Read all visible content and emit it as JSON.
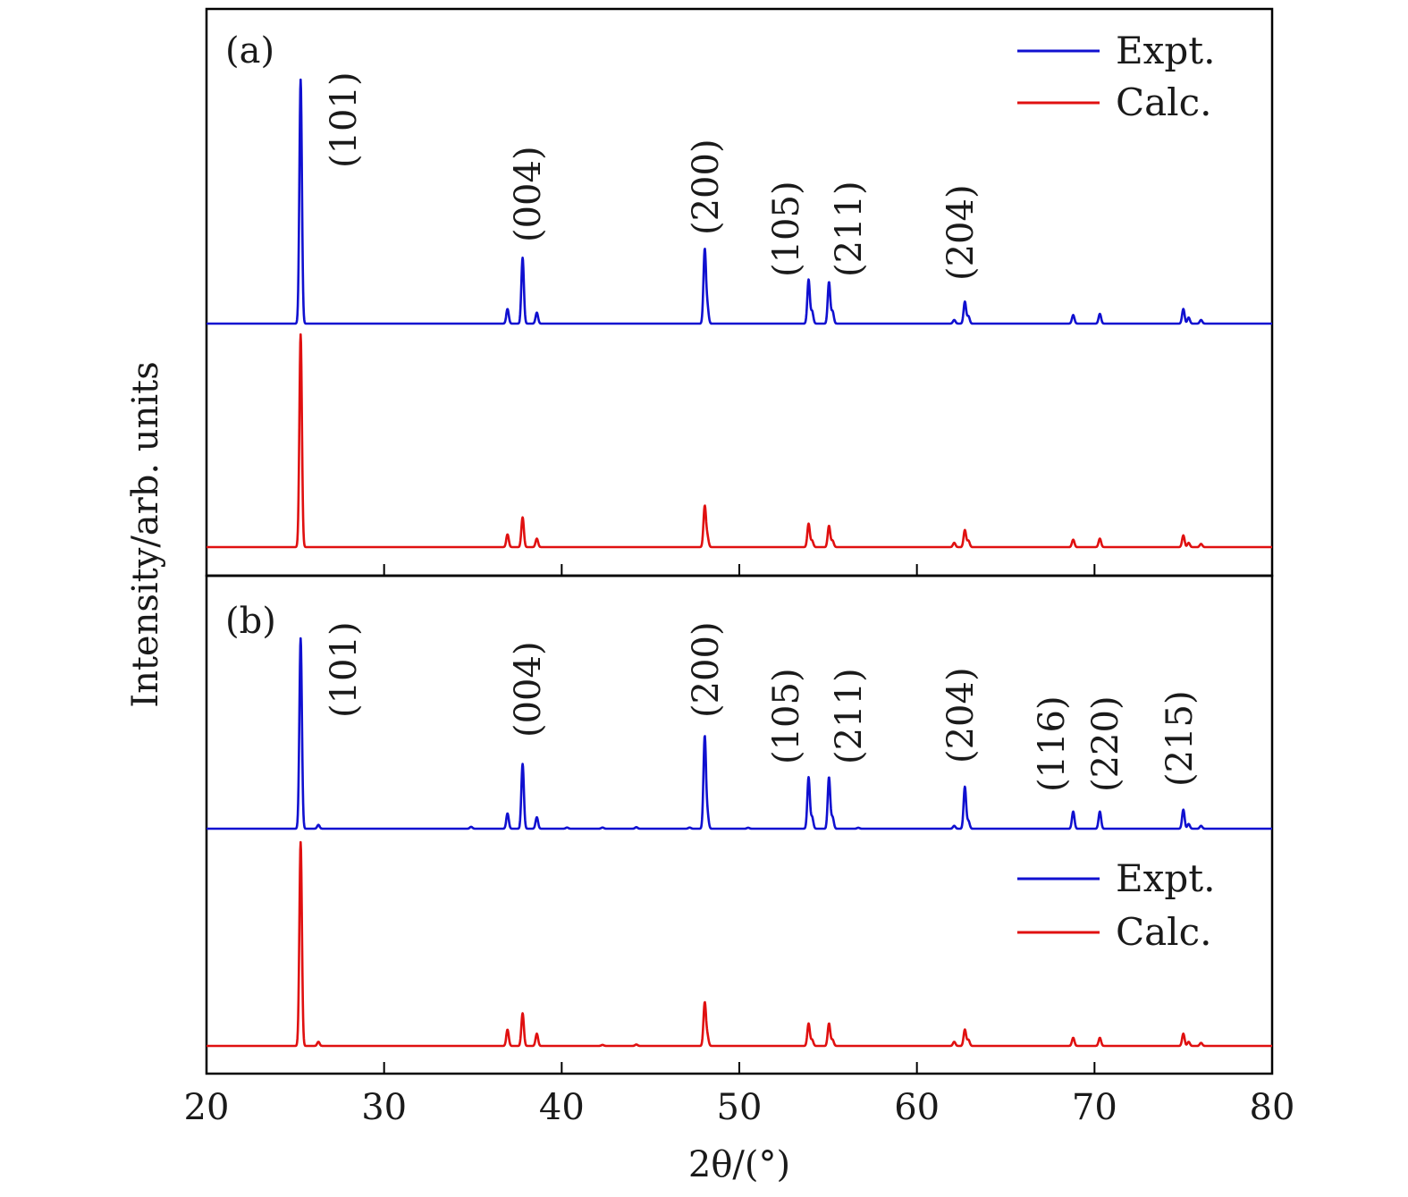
{
  "chart_data": {
    "type": "line",
    "xlabel": "2θ/(°)",
    "ylabel": "Intensity/arb. units",
    "xlim": [
      20,
      80
    ],
    "xticks": [
      20,
      30,
      40,
      50,
      60,
      70,
      80
    ],
    "xtick_labels": [
      "20",
      "30",
      "40",
      "50",
      "60",
      "70",
      "80"
    ],
    "colors": {
      "expt": "#1010d0",
      "calc": "#e01010"
    },
    "panels": [
      {
        "label": "(a)",
        "legend": {
          "placement": "top-right",
          "entries": [
            "Expt.",
            "Calc."
          ]
        },
        "series": [
          {
            "name": "Expt.",
            "peaks": [
              [
                25.3,
                100
              ],
              [
                36.95,
                6
              ],
              [
                37.8,
                27
              ],
              [
                38.6,
                4.5
              ],
              [
                48.05,
                30
              ],
              [
                48.2,
                7
              ],
              [
                53.9,
                18
              ],
              [
                54.1,
                5
              ],
              [
                55.05,
                17
              ],
              [
                55.25,
                5
              ],
              [
                62.1,
                1.5
              ],
              [
                62.7,
                9
              ],
              [
                62.9,
                3
              ],
              [
                68.8,
                3.5
              ],
              [
                70.3,
                4
              ],
              [
                75.0,
                6
              ],
              [
                75.3,
                2.5
              ],
              [
                76.0,
                1.5
              ]
            ]
          },
          {
            "name": "Calc.",
            "peaks": [
              [
                25.3,
                100
              ],
              [
                36.95,
                6
              ],
              [
                37.8,
                14
              ],
              [
                38.6,
                4
              ],
              [
                48.05,
                19
              ],
              [
                48.2,
                5
              ],
              [
                53.9,
                11
              ],
              [
                54.1,
                3
              ],
              [
                55.05,
                10
              ],
              [
                55.25,
                3
              ],
              [
                62.1,
                2
              ],
              [
                62.7,
                8
              ],
              [
                62.9,
                3
              ],
              [
                68.8,
                3.5
              ],
              [
                70.3,
                4
              ],
              [
                75.0,
                5.5
              ],
              [
                75.3,
                2
              ],
              [
                76.0,
                1.5
              ]
            ]
          }
        ],
        "annotations": [
          "(101)",
          "(004)",
          "(200)",
          "(105)",
          "(211)",
          "(204)"
        ]
      },
      {
        "label": "(b)",
        "legend": {
          "placement": "bottom-right",
          "entries": [
            "Expt.",
            "Calc."
          ]
        },
        "series": [
          {
            "name": "Expt.",
            "peaks": [
              [
                25.3,
                100
              ],
              [
                26.3,
                2
              ],
              [
                34.9,
                1
              ],
              [
                36.95,
                8
              ],
              [
                37.8,
                34
              ],
              [
                38.6,
                6
              ],
              [
                40.3,
                0.6
              ],
              [
                42.3,
                0.6
              ],
              [
                44.2,
                0.8
              ],
              [
                47.2,
                0.6
              ],
              [
                48.05,
                48
              ],
              [
                48.2,
                8
              ],
              [
                50.5,
                0.5
              ],
              [
                53.9,
                27
              ],
              [
                54.1,
                6
              ],
              [
                55.05,
                27
              ],
              [
                55.25,
                6
              ],
              [
                56.7,
                0.5
              ],
              [
                62.1,
                1.5
              ],
              [
                62.7,
                22
              ],
              [
                62.9,
                4
              ],
              [
                68.8,
                9
              ],
              [
                70.3,
                9
              ],
              [
                75.0,
                10
              ],
              [
                75.3,
                2.5
              ],
              [
                76.0,
                1.5
              ]
            ]
          },
          {
            "name": "Calc.",
            "peaks": [
              [
                25.3,
                100
              ],
              [
                26.3,
                2
              ],
              [
                36.95,
                8
              ],
              [
                37.8,
                16
              ],
              [
                38.6,
                6
              ],
              [
                42.3,
                0.5
              ],
              [
                44.2,
                0.7
              ],
              [
                48.05,
                21
              ],
              [
                48.2,
                5
              ],
              [
                53.9,
                11
              ],
              [
                54.1,
                3
              ],
              [
                55.05,
                11
              ],
              [
                55.25,
                3
              ],
              [
                62.1,
                2
              ],
              [
                62.7,
                8
              ],
              [
                62.9,
                3
              ],
              [
                68.8,
                4
              ],
              [
                70.3,
                4
              ],
              [
                75.0,
                6
              ],
              [
                75.3,
                2
              ],
              [
                76.0,
                1.5
              ]
            ]
          }
        ],
        "annotations": [
          "(101)",
          "(004)",
          "(200)",
          "(105)",
          "(211)",
          "(204)",
          "(116)",
          "(220)",
          "(215)"
        ]
      }
    ]
  }
}
